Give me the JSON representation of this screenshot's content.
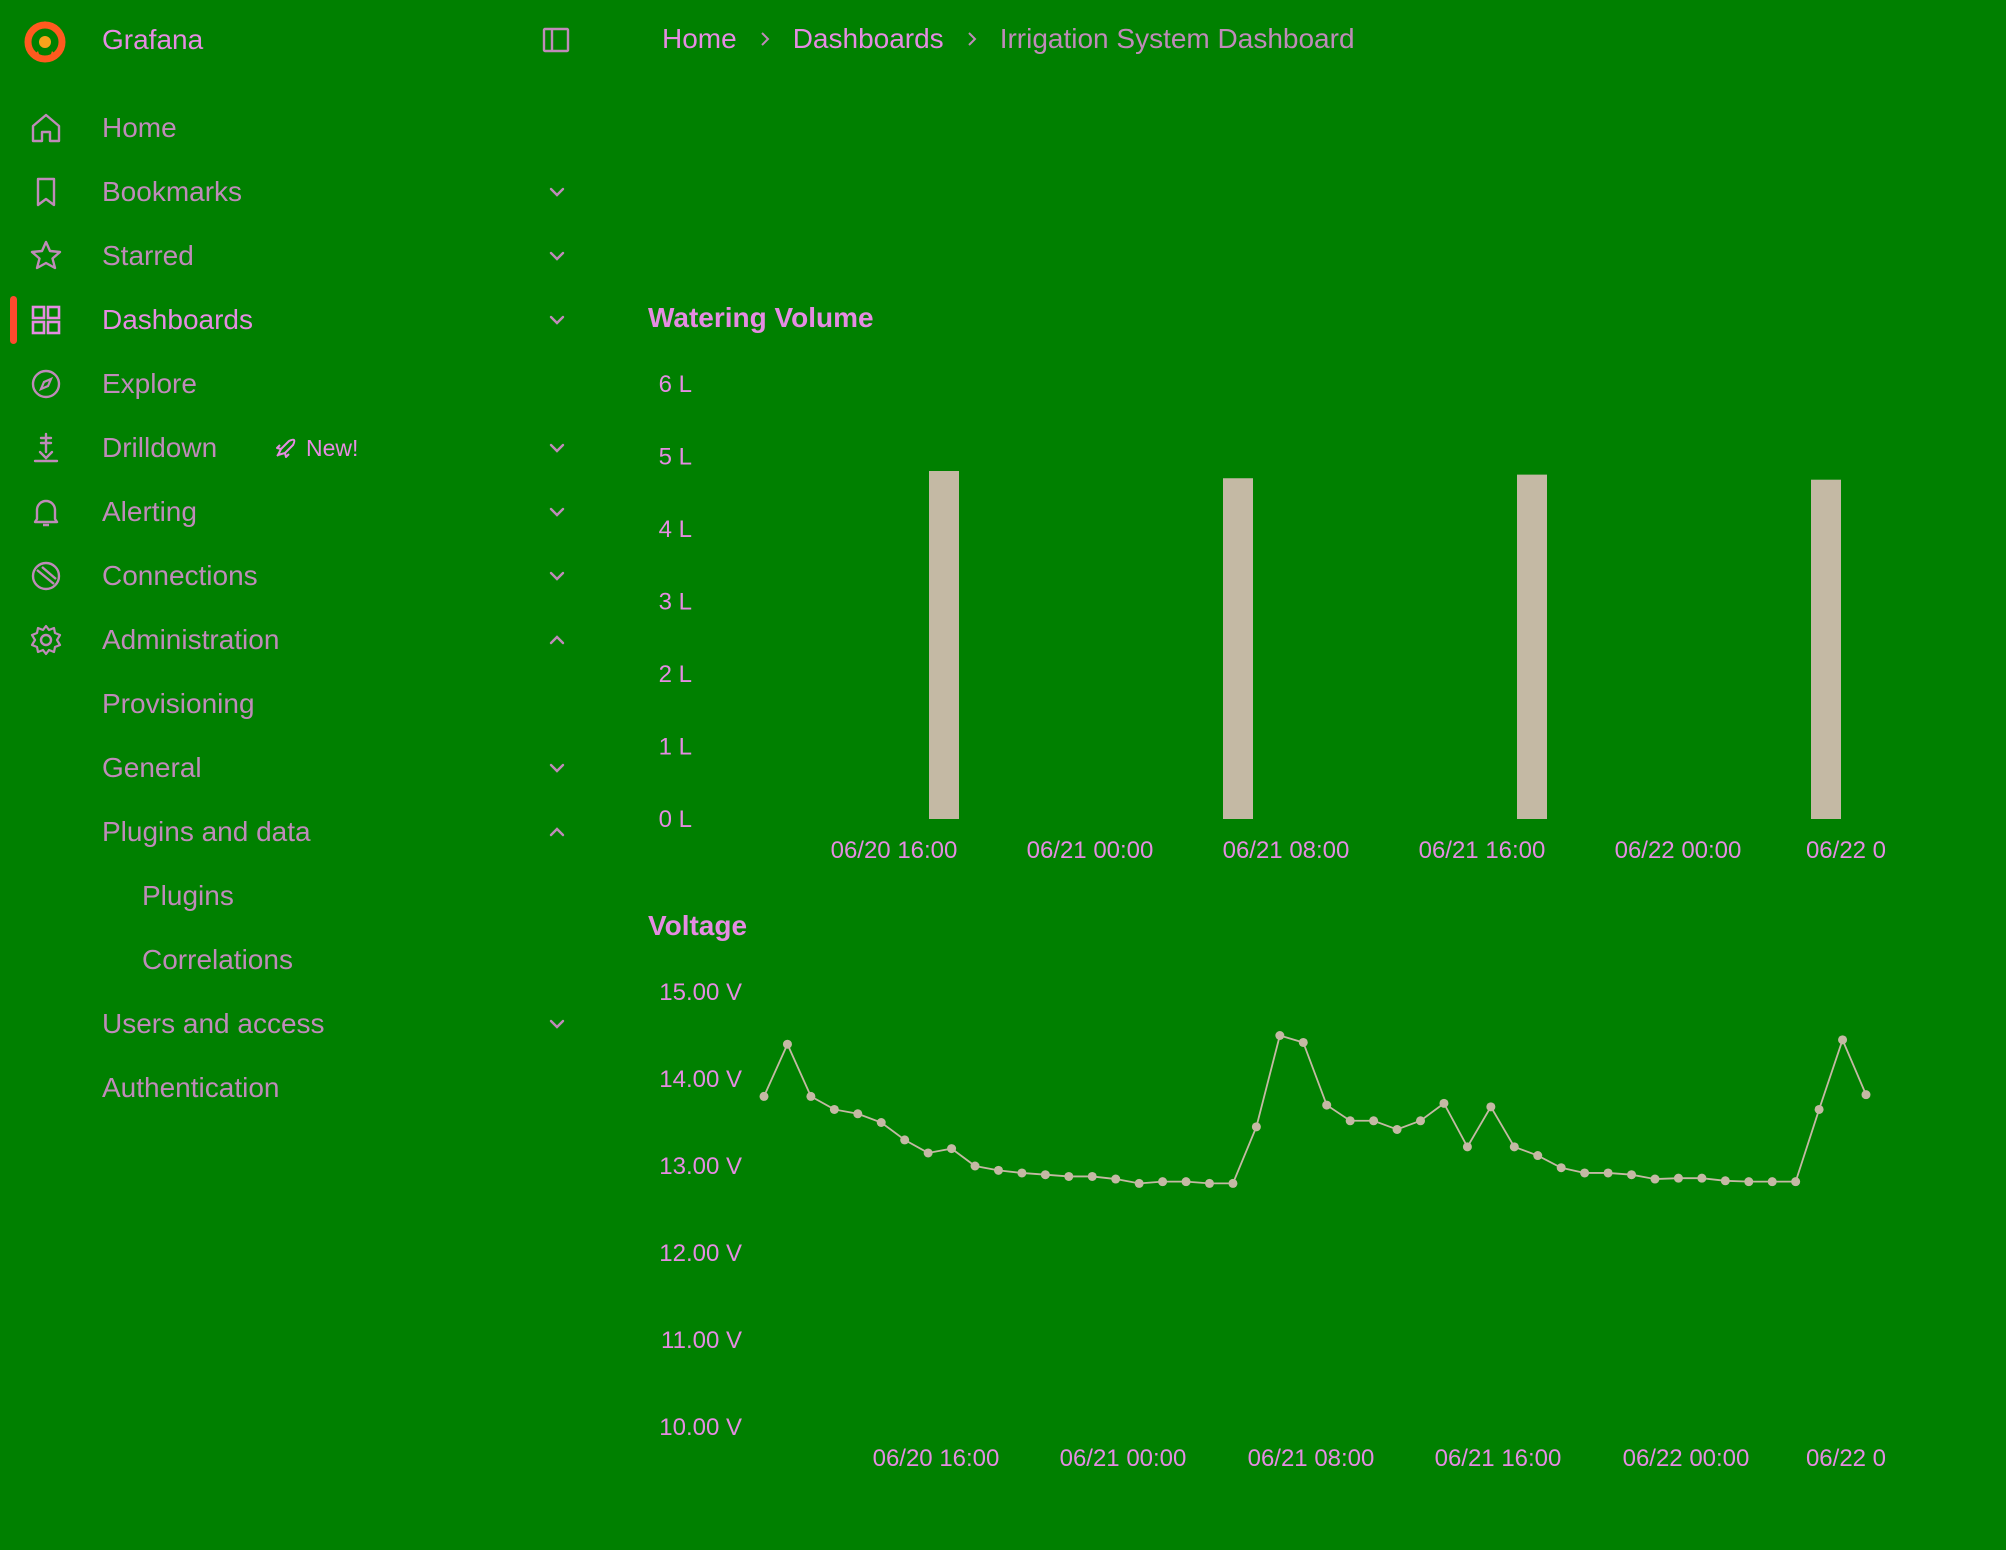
{
  "app": {
    "name": "Grafana"
  },
  "breadcrumb": [
    "Home",
    "Dashboards",
    "Irrigation System Dashboard"
  ],
  "colors": {
    "background": "#008000",
    "accent": "#ff4a2e",
    "text": "#e58ce2",
    "muted_text": "#bf8bb9",
    "series": "#c4b9a4"
  },
  "nav": [
    {
      "label": "Home",
      "icon": "home-icon",
      "chevron": ""
    },
    {
      "label": "Bookmarks",
      "icon": "bookmark-icon",
      "chevron": "down"
    },
    {
      "label": "Starred",
      "icon": "star-icon",
      "chevron": "down"
    },
    {
      "label": "Dashboards",
      "icon": "dashboards-grid-icon",
      "chevron": "down",
      "active": true
    },
    {
      "label": "Explore",
      "icon": "compass-icon",
      "chevron": ""
    },
    {
      "label": "Drilldown",
      "icon": "drilldown-icon",
      "chevron": "down",
      "badge": "New!"
    },
    {
      "label": "Alerting",
      "icon": "bell-icon",
      "chevron": "down"
    },
    {
      "label": "Connections",
      "icon": "connections-icon",
      "chevron": "down"
    },
    {
      "label": "Administration",
      "icon": "gear-icon",
      "chevron": "up"
    },
    {
      "label": "Provisioning",
      "level": 2,
      "chevron": ""
    },
    {
      "label": "General",
      "level": 2,
      "chevron": "down"
    },
    {
      "label": "Plugins and data",
      "level": 2,
      "chevron": "up"
    },
    {
      "label": "Plugins",
      "level": 3,
      "chevron": ""
    },
    {
      "label": "Correlations",
      "level": 3,
      "chevron": ""
    },
    {
      "label": "Users and access",
      "level": 2,
      "chevron": "down"
    },
    {
      "label": "Authentication",
      "level": 2,
      "chevron": ""
    }
  ],
  "chart_data": [
    {
      "type": "bar",
      "title": "Watering Volume",
      "unit": "L",
      "x": [
        "06/20 20:00",
        "06/21 08:00",
        "06/21 20:00",
        "06/22 08:00"
      ],
      "values": [
        4.8,
        4.7,
        4.75,
        4.68
      ],
      "ylim": [
        0,
        6
      ],
      "yticks": [
        "0 L",
        "1 L",
        "2 L",
        "3 L",
        "4 L",
        "5 L",
        "6 L"
      ],
      "xticks": [
        "06/20 16:00",
        "06/21 00:00",
        "06/21 08:00",
        "06/21 16:00",
        "06/22 00:00",
        "06/22 0"
      ],
      "legend": "none",
      "grid": false
    },
    {
      "type": "line",
      "title": "Voltage",
      "unit": "V",
      "values": [
        13.8,
        14.4,
        13.8,
        13.65,
        13.6,
        13.5,
        13.3,
        13.15,
        13.2,
        13.0,
        12.95,
        12.92,
        12.9,
        12.88,
        12.88,
        12.85,
        12.8,
        12.82,
        12.82,
        12.8,
        12.8,
        13.45,
        14.5,
        14.42,
        13.7,
        13.52,
        13.52,
        13.42,
        13.52,
        13.72,
        13.22,
        13.68,
        13.22,
        13.12,
        12.98,
        12.92,
        12.92,
        12.9,
        12.85,
        12.86,
        12.86,
        12.83,
        12.82,
        12.82,
        12.82,
        13.65,
        14.45,
        13.82
      ],
      "ylim": [
        10,
        15
      ],
      "yticks": [
        "10.00 V",
        "11.00 V",
        "12.00 V",
        "13.00 V",
        "14.00 V",
        "15.00 V"
      ],
      "xticks": [
        "06/20 16:00",
        "06/21 00:00",
        "06/21 08:00",
        "06/21 16:00",
        "06/22 00:00",
        "06/22 0"
      ],
      "legend": "none",
      "grid": false
    }
  ]
}
